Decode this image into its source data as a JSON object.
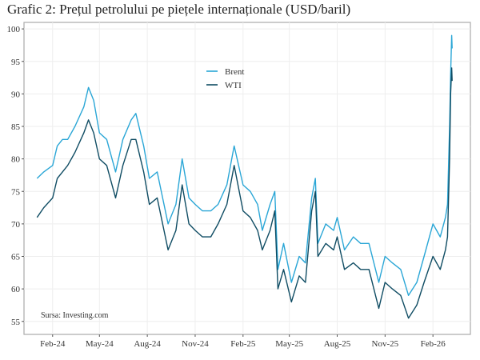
{
  "chart_data": {
    "type": "line",
    "title": "Grafic 2: Prețul petrolului pe piețele internaționale (USD/baril)",
    "xlabel": "",
    "ylabel": "",
    "ylim": [
      53,
      101
    ],
    "yticks": [
      55,
      60,
      65,
      70,
      75,
      80,
      85,
      90,
      95,
      100
    ],
    "xticks": [
      {
        "date": "2024-02-01",
        "label": "Feb-24"
      },
      {
        "date": "2024-05-01",
        "label": "May-24"
      },
      {
        "date": "2024-08-01",
        "label": "Aug-24"
      },
      {
        "date": "2024-11-01",
        "label": "Nov-24"
      },
      {
        "date": "2025-02-01",
        "label": "Feb-25"
      },
      {
        "date": "2025-05-01",
        "label": "May-25"
      },
      {
        "date": "2025-08-01",
        "label": "Aug-25"
      },
      {
        "date": "2025-11-01",
        "label": "Nov-25"
      },
      {
        "date": "2026-02-01",
        "label": "Feb-26"
      }
    ],
    "xlim": [
      "2023-12-08",
      "2026-04-14"
    ],
    "grid": true,
    "legend_position": "top-center",
    "annotation": "Sursa: Investing.com",
    "x": [
      "2024-01-02",
      "2024-01-15",
      "2024-02-01",
      "2024-02-10",
      "2024-02-20",
      "2024-03-01",
      "2024-03-15",
      "2024-04-01",
      "2024-04-10",
      "2024-04-20",
      "2024-05-01",
      "2024-05-15",
      "2024-06-01",
      "2024-06-15",
      "2024-07-01",
      "2024-07-10",
      "2024-07-25",
      "2024-08-05",
      "2024-08-20",
      "2024-09-10",
      "2024-09-25",
      "2024-10-07",
      "2024-10-20",
      "2024-11-01",
      "2024-11-15",
      "2024-12-01",
      "2024-12-15",
      "2025-01-01",
      "2025-01-15",
      "2025-02-01",
      "2025-02-15",
      "2025-03-01",
      "2025-03-10",
      "2025-03-25",
      "2025-04-03",
      "2025-04-09",
      "2025-04-20",
      "2025-05-05",
      "2025-05-20",
      "2025-06-01",
      "2025-06-13",
      "2025-06-20",
      "2025-06-25",
      "2025-07-10",
      "2025-07-25",
      "2025-08-01",
      "2025-08-15",
      "2025-09-01",
      "2025-09-15",
      "2025-10-01",
      "2025-10-20",
      "2025-11-01",
      "2025-11-15",
      "2025-12-01",
      "2025-12-16",
      "2026-01-01",
      "2026-01-15",
      "2026-02-01",
      "2026-02-15",
      "2026-02-25",
      "2026-03-01",
      "2026-03-05",
      "2026-03-07",
      "2026-03-09",
      "2026-03-10"
    ],
    "series": [
      {
        "name": "Brent",
        "color": "#2aa6d6",
        "values": [
          77,
          78,
          79,
          82,
          83,
          83,
          85,
          88,
          91,
          89,
          84,
          83,
          78,
          83,
          86,
          87,
          82,
          77,
          78,
          70,
          73,
          80,
          74,
          73,
          72,
          72,
          73,
          76,
          82,
          76,
          75,
          73,
          69,
          73,
          75,
          63,
          67,
          61,
          65,
          64,
          74,
          77,
          67,
          70,
          69,
          71,
          66,
          68,
          67,
          67,
          61,
          65,
          64,
          63,
          59,
          61,
          65,
          70,
          68,
          71,
          73,
          85,
          93,
          99,
          97
        ]
      },
      {
        "name": "WTI",
        "color": "#0f4c63",
        "values": [
          71,
          72.5,
          74,
          77,
          78,
          79,
          81,
          84,
          86,
          84,
          80,
          79,
          74,
          79,
          83,
          83,
          78,
          73,
          74,
          66,
          69,
          76,
          70,
          69,
          68,
          68,
          70,
          73,
          79,
          72,
          71,
          69,
          66,
          69,
          72,
          60,
          63,
          58,
          62,
          61,
          72,
          75,
          65,
          67,
          66,
          68,
          63,
          64,
          63,
          63,
          57,
          61,
          60,
          59,
          55.5,
          57.5,
          61,
          65,
          63,
          66,
          68,
          80,
          90,
          94,
          92
        ]
      }
    ]
  }
}
